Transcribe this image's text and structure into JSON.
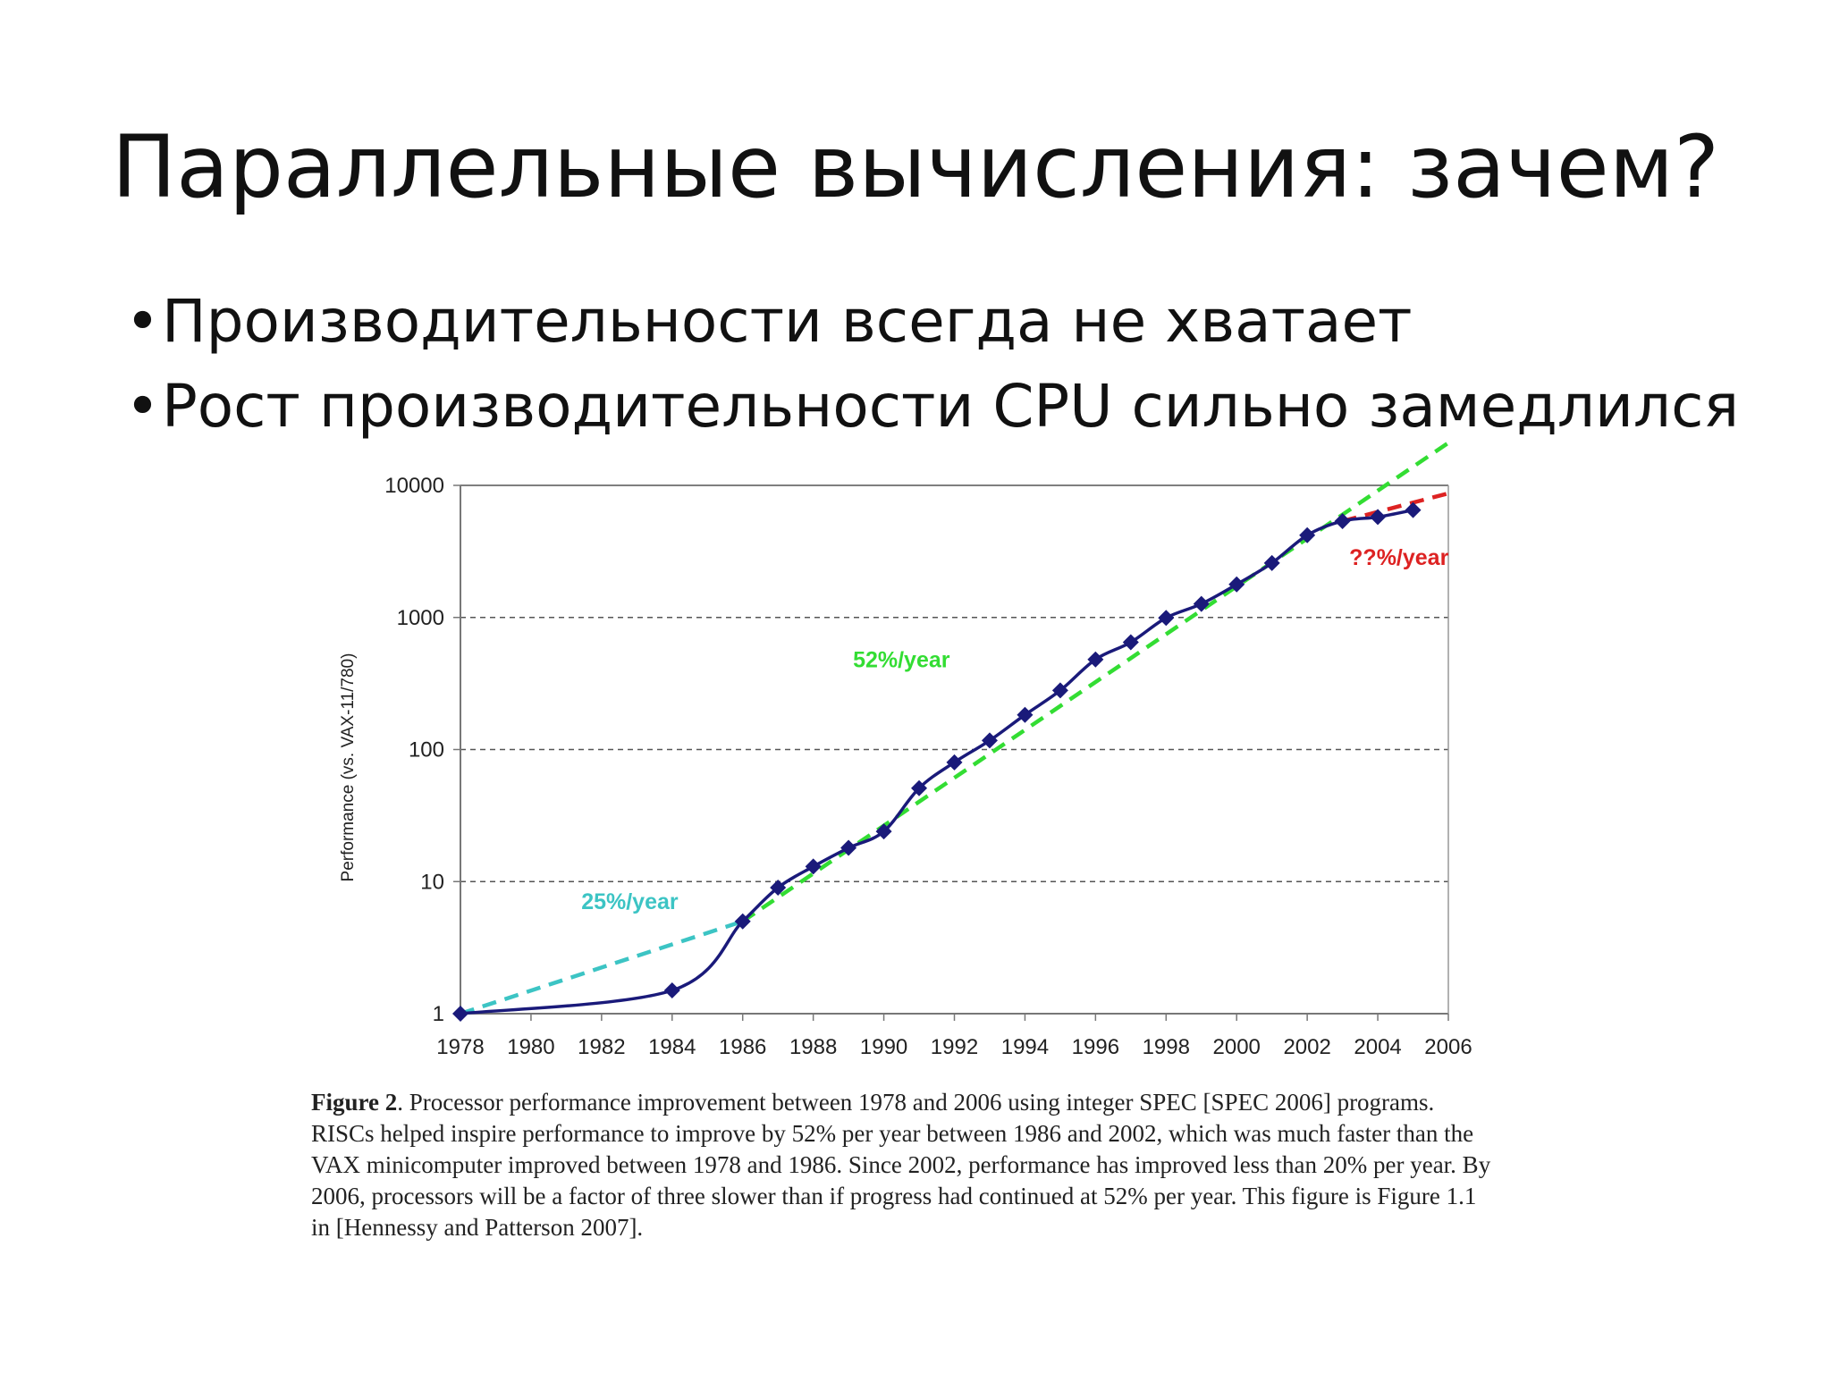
{
  "slide": {
    "title": "Параллельные вычисления: зачем?",
    "bullets": [
      "Производительности всегда не хватает",
      "Рост производительности CPU сильно замедлился"
    ]
  },
  "caption": {
    "label": "Figure 2",
    "text": ". Processor performance improvement between 1978 and 2006 using integer SPEC [SPEC 2006] programs. RISCs helped inspire performance to improve by 52% per year between 1986 and 2002, which was much faster than the VAX minicomputer improved between 1978 and 1986. Since 2002, performance has improved less than 20% per year. By 2006, processors will be a factor of three slower than if progress had continued at 52% per year. This figure is Figure 1.1 in [Hennessy and Patterson 2007]."
  },
  "chart_data": {
    "type": "line",
    "title": "",
    "xlabel": "",
    "ylabel": "Performance (vs. VAX-11/780)",
    "x_ticks": [
      "1978",
      "1980",
      "1982",
      "1984",
      "1986",
      "1988",
      "1990",
      "1992",
      "1994",
      "1996",
      "1998",
      "2000",
      "2002",
      "2004",
      "2006"
    ],
    "y_ticks": [
      "1",
      "10",
      "100",
      "1000",
      "10000"
    ],
    "xlim": [
      1978,
      2006
    ],
    "ylim": [
      1,
      10000
    ],
    "y_scale": "log",
    "grid": "horizontal dashed",
    "series": [
      {
        "name": "",
        "color": "#1a1a7a",
        "marker": "diamond",
        "points": [
          [
            1978,
            1
          ],
          [
            1984,
            1.5
          ],
          [
            1986,
            5
          ],
          [
            1987,
            9
          ],
          [
            1988,
            13
          ],
          [
            1989,
            18
          ],
          [
            1990,
            24
          ],
          [
            1991,
            51
          ],
          [
            1992,
            80
          ],
          [
            1993,
            117
          ],
          [
            1994,
            183
          ],
          [
            1995,
            280
          ],
          [
            1996,
            481
          ],
          [
            1997,
            649
          ],
          [
            1998,
            993
          ],
          [
            1999,
            1267
          ],
          [
            2000,
            1779
          ],
          [
            2001,
            2584
          ],
          [
            2002,
            4195
          ],
          [
            2003,
            5364
          ],
          [
            2004,
            5764
          ],
          [
            2005,
            6505
          ]
        ]
      }
    ],
    "trend_lines": [
      {
        "label": "25%/year",
        "color": "#3cc4c4",
        "from": [
          1978,
          1
        ],
        "to": [
          1986,
          5
        ]
      },
      {
        "label": "52%/year",
        "color": "#33dd33",
        "from": [
          1986,
          5
        ],
        "to": [
          2006,
          21000
        ]
      },
      {
        "label": "??%/year",
        "color": "#dd2222",
        "from": [
          2003,
          5364
        ],
        "to": [
          2006,
          8700
        ]
      }
    ],
    "annotations": [
      {
        "text": "25%/year",
        "x": 1982.8,
        "y": 6.2,
        "color": "#3cc4c4"
      },
      {
        "text": "52%/year",
        "x": 1990.5,
        "y": 420,
        "color": "#33dd33"
      },
      {
        "text": "??%/year",
        "x": 2004.6,
        "y": 2500,
        "color": "#dd2222"
      }
    ]
  }
}
